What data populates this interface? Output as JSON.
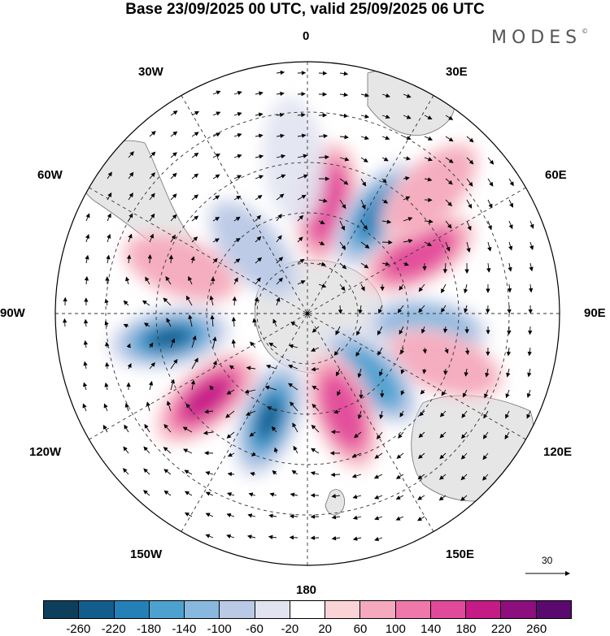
{
  "title": "Base 23/09/2025 00 UTC, valid 25/09/2025 06 UTC",
  "brand": {
    "name": "MODES",
    "mark": "©"
  },
  "longitude_labels": {
    "top": "0",
    "bottom": "180",
    "left": "90W",
    "right": "90E",
    "nw30": "30W",
    "nw60": "60W",
    "ne30": "30E",
    "ne60": "60E",
    "sw120": "120W",
    "sw150": "150W",
    "se120": "120E",
    "se150": "150E"
  },
  "reference_vector": {
    "label": "30"
  },
  "colorbar": {
    "colors": [
      "#0d3f5c",
      "#135d8c",
      "#2580b8",
      "#4da1cf",
      "#88b8de",
      "#b9c9e6",
      "#e1e3f1",
      "#ffffff",
      "#fad3d7",
      "#f5a9be",
      "#ef78aa",
      "#e14a9a",
      "#c41b87",
      "#8d0f7d",
      "#5a0a6e"
    ],
    "ticks": [
      "-260",
      "-220",
      "-180",
      "-140",
      "-100",
      "-60",
      "-20",
      "20",
      "60",
      "100",
      "140",
      "180",
      "220",
      "260"
    ]
  },
  "anomaly_cells": [
    {
      "lon": 10,
      "lat": -50,
      "value": 170
    },
    {
      "lon": 35,
      "lat": -47,
      "value": -210
    },
    {
      "lon": 62,
      "lat": -45,
      "value": 170
    },
    {
      "lon": 97,
      "lat": -47,
      "value": -120
    },
    {
      "lon": 110,
      "lat": -38,
      "value": 70
    },
    {
      "lon": 135,
      "lat": -58,
      "value": -140
    },
    {
      "lon": 160,
      "lat": -53,
      "value": 150
    },
    {
      "lon": -160,
      "lat": -50,
      "value": -240
    },
    {
      "lon": -130,
      "lat": -43,
      "value": 180
    },
    {
      "lon": -100,
      "lat": -40,
      "value": -230
    },
    {
      "lon": -70,
      "lat": -42,
      "value": 60
    },
    {
      "lon": -40,
      "lat": -60,
      "value": -60
    },
    {
      "lon": -5,
      "lat": -35,
      "value": -50
    },
    {
      "lon": 45,
      "lat": -28,
      "value": 80
    }
  ]
}
